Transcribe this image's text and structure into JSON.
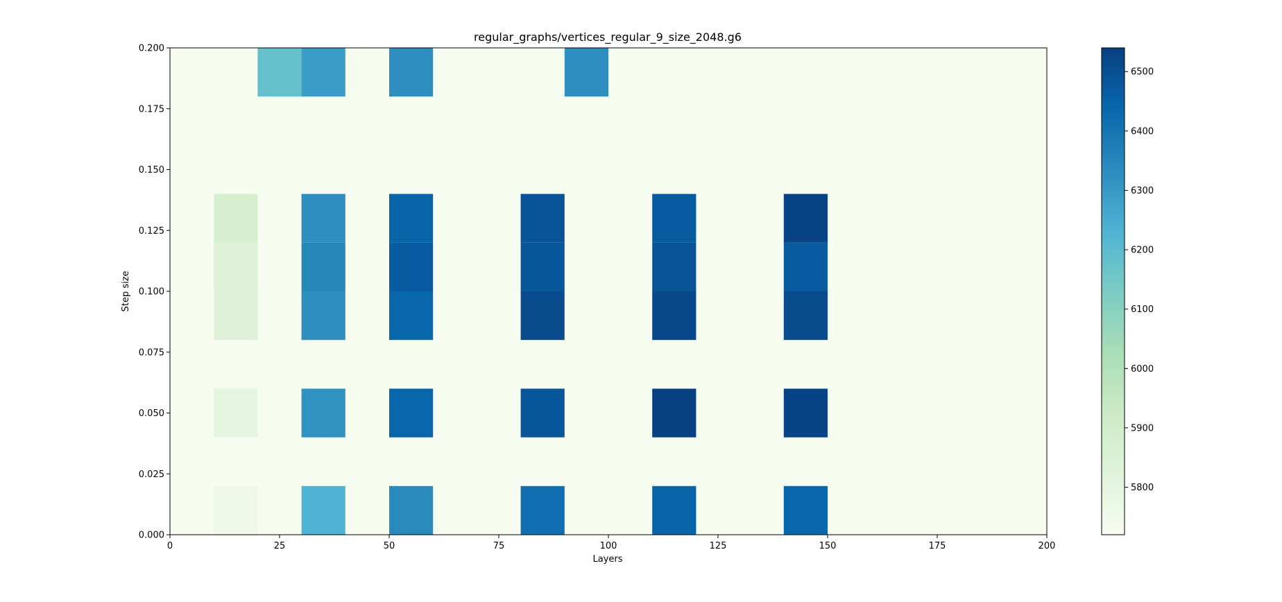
{
  "chart_data": {
    "type": "heatmap",
    "title": "regular_graphs/vertices_regular_9_size_2048.g6",
    "xlabel": "Layers",
    "ylabel": "Step size",
    "xlim": [
      0,
      200
    ],
    "ylim": [
      0,
      0.2
    ],
    "x_ticks": [
      "0",
      "25",
      "50",
      "75",
      "100",
      "125",
      "150",
      "175",
      "200"
    ],
    "y_ticks": [
      "0.000",
      "0.025",
      "0.050",
      "0.075",
      "0.100",
      "0.125",
      "0.150",
      "0.175",
      "0.200"
    ],
    "colormap": "GnBu",
    "colorbar": {
      "min": 5720,
      "max": 6540,
      "ticks": [
        "5800",
        "5900",
        "6000",
        "6100",
        "6200",
        "6300",
        "6400",
        "6500"
      ]
    },
    "x_bins": [
      0,
      10,
      20,
      30,
      40,
      50,
      60,
      70,
      80,
      90,
      100,
      110,
      120,
      130,
      140,
      150,
      160,
      170,
      180,
      190,
      200
    ],
    "y_bins": [
      0,
      0.02,
      0.04,
      0.06,
      0.08,
      0.1,
      0.12,
      0.14,
      0.16,
      0.18,
      0.2
    ],
    "cells": [
      {
        "x": [
          10,
          20
        ],
        "y": [
          0.0,
          0.02
        ],
        "value": 5760
      },
      {
        "x": [
          30,
          40
        ],
        "y": [
          0.0,
          0.02
        ],
        "value": 6230
      },
      {
        "x": [
          50,
          60
        ],
        "y": [
          0.0,
          0.02
        ],
        "value": 6340
      },
      {
        "x": [
          80,
          90
        ],
        "y": [
          0.0,
          0.02
        ],
        "value": 6420
      },
      {
        "x": [
          110,
          120
        ],
        "y": [
          0.0,
          0.02
        ],
        "value": 6450
      },
      {
        "x": [
          140,
          150
        ],
        "y": [
          0.0,
          0.02
        ],
        "value": 6440
      },
      {
        "x": [
          10,
          20
        ],
        "y": [
          0.04,
          0.06
        ],
        "value": 5800
      },
      {
        "x": [
          30,
          40
        ],
        "y": [
          0.04,
          0.06
        ],
        "value": 6320
      },
      {
        "x": [
          50,
          60
        ],
        "y": [
          0.04,
          0.06
        ],
        "value": 6440
      },
      {
        "x": [
          80,
          90
        ],
        "y": [
          0.04,
          0.06
        ],
        "value": 6480
      },
      {
        "x": [
          110,
          120
        ],
        "y": [
          0.04,
          0.06
        ],
        "value": 6540
      },
      {
        "x": [
          140,
          150
        ],
        "y": [
          0.04,
          0.06
        ],
        "value": 6530
      },
      {
        "x": [
          10,
          20
        ],
        "y": [
          0.08,
          0.1
        ],
        "value": 5830
      },
      {
        "x": [
          30,
          40
        ],
        "y": [
          0.08,
          0.1
        ],
        "value": 6330
      },
      {
        "x": [
          50,
          60
        ],
        "y": [
          0.08,
          0.1
        ],
        "value": 6440
      },
      {
        "x": [
          80,
          90
        ],
        "y": [
          0.08,
          0.1
        ],
        "value": 6510
      },
      {
        "x": [
          110,
          120
        ],
        "y": [
          0.08,
          0.1
        ],
        "value": 6520
      },
      {
        "x": [
          140,
          150
        ],
        "y": [
          0.08,
          0.1
        ],
        "value": 6510
      },
      {
        "x": [
          10,
          20
        ],
        "y": [
          0.1,
          0.12
        ],
        "value": 5840
      },
      {
        "x": [
          30,
          40
        ],
        "y": [
          0.1,
          0.12
        ],
        "value": 6350
      },
      {
        "x": [
          50,
          60
        ],
        "y": [
          0.1,
          0.12
        ],
        "value": 6470
      },
      {
        "x": [
          80,
          90
        ],
        "y": [
          0.1,
          0.12
        ],
        "value": 6480
      },
      {
        "x": [
          110,
          120
        ],
        "y": [
          0.1,
          0.12
        ],
        "value": 6490
      },
      {
        "x": [
          140,
          150
        ],
        "y": [
          0.1,
          0.12
        ],
        "value": 6470
      },
      {
        "x": [
          10,
          20
        ],
        "y": [
          0.12,
          0.14
        ],
        "value": 5880
      },
      {
        "x": [
          30,
          40
        ],
        "y": [
          0.12,
          0.14
        ],
        "value": 6330
      },
      {
        "x": [
          50,
          60
        ],
        "y": [
          0.12,
          0.14
        ],
        "value": 6450
      },
      {
        "x": [
          80,
          90
        ],
        "y": [
          0.12,
          0.14
        ],
        "value": 6490
      },
      {
        "x": [
          110,
          120
        ],
        "y": [
          0.12,
          0.14
        ],
        "value": 6470
      },
      {
        "x": [
          140,
          150
        ],
        "y": [
          0.12,
          0.14
        ],
        "value": 6530
      },
      {
        "x": [
          20,
          30
        ],
        "y": [
          0.18,
          0.2
        ],
        "value": 6180
      },
      {
        "x": [
          30,
          40
        ],
        "y": [
          0.18,
          0.2
        ],
        "value": 6290
      },
      {
        "x": [
          50,
          60
        ],
        "y": [
          0.18,
          0.2
        ],
        "value": 6330
      },
      {
        "x": [
          90,
          100
        ],
        "y": [
          0.18,
          0.2
        ],
        "value": 6330
      }
    ],
    "background_value": 5720,
    "grid": false
  }
}
